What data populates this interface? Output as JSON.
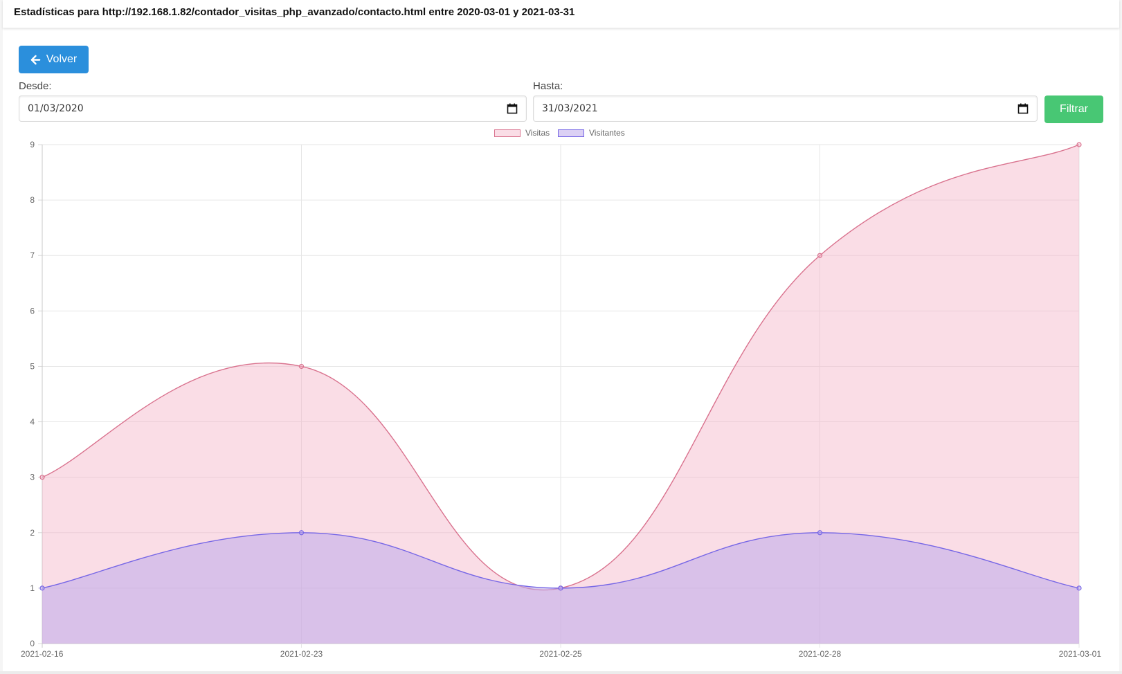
{
  "header": {
    "title": "Estadísticas para http://192.168.1.82/contador_visitas_php_avanzado/contacto.html entre 2020-03-01 y 2021-03-31"
  },
  "toolbar": {
    "back_label": "Volver",
    "back_icon": "arrow-left-icon",
    "filter_label": "Filtrar"
  },
  "filters": {
    "from_label": "Desde:",
    "from_value": "01/03/2020",
    "to_label": "Hasta:",
    "to_value": "31/03/2021",
    "calendar_icon": "calendar-icon"
  },
  "colors": {
    "primary": "#2b8fdc",
    "success": "#48c774"
  },
  "chart_data": {
    "type": "line",
    "categories": [
      "2021-02-16",
      "2021-02-23",
      "2021-02-25",
      "2021-02-28",
      "2021-03-01"
    ],
    "series": [
      {
        "name": "Visitas",
        "values": [
          3,
          5,
          1,
          7,
          9
        ],
        "color": "#d9728e",
        "fill": "rgba(244,180,200,0.45)"
      },
      {
        "name": "Visitantes",
        "values": [
          1,
          2,
          1,
          2,
          1
        ],
        "color": "#7666e6",
        "fill": "rgba(190,170,235,0.55)"
      }
    ],
    "ylim": [
      0,
      9
    ],
    "yticks": [
      0,
      1,
      2,
      3,
      4,
      5,
      6,
      7,
      8,
      9
    ],
    "grid": true,
    "legend_position": "top-center",
    "area": true,
    "smooth": true
  }
}
